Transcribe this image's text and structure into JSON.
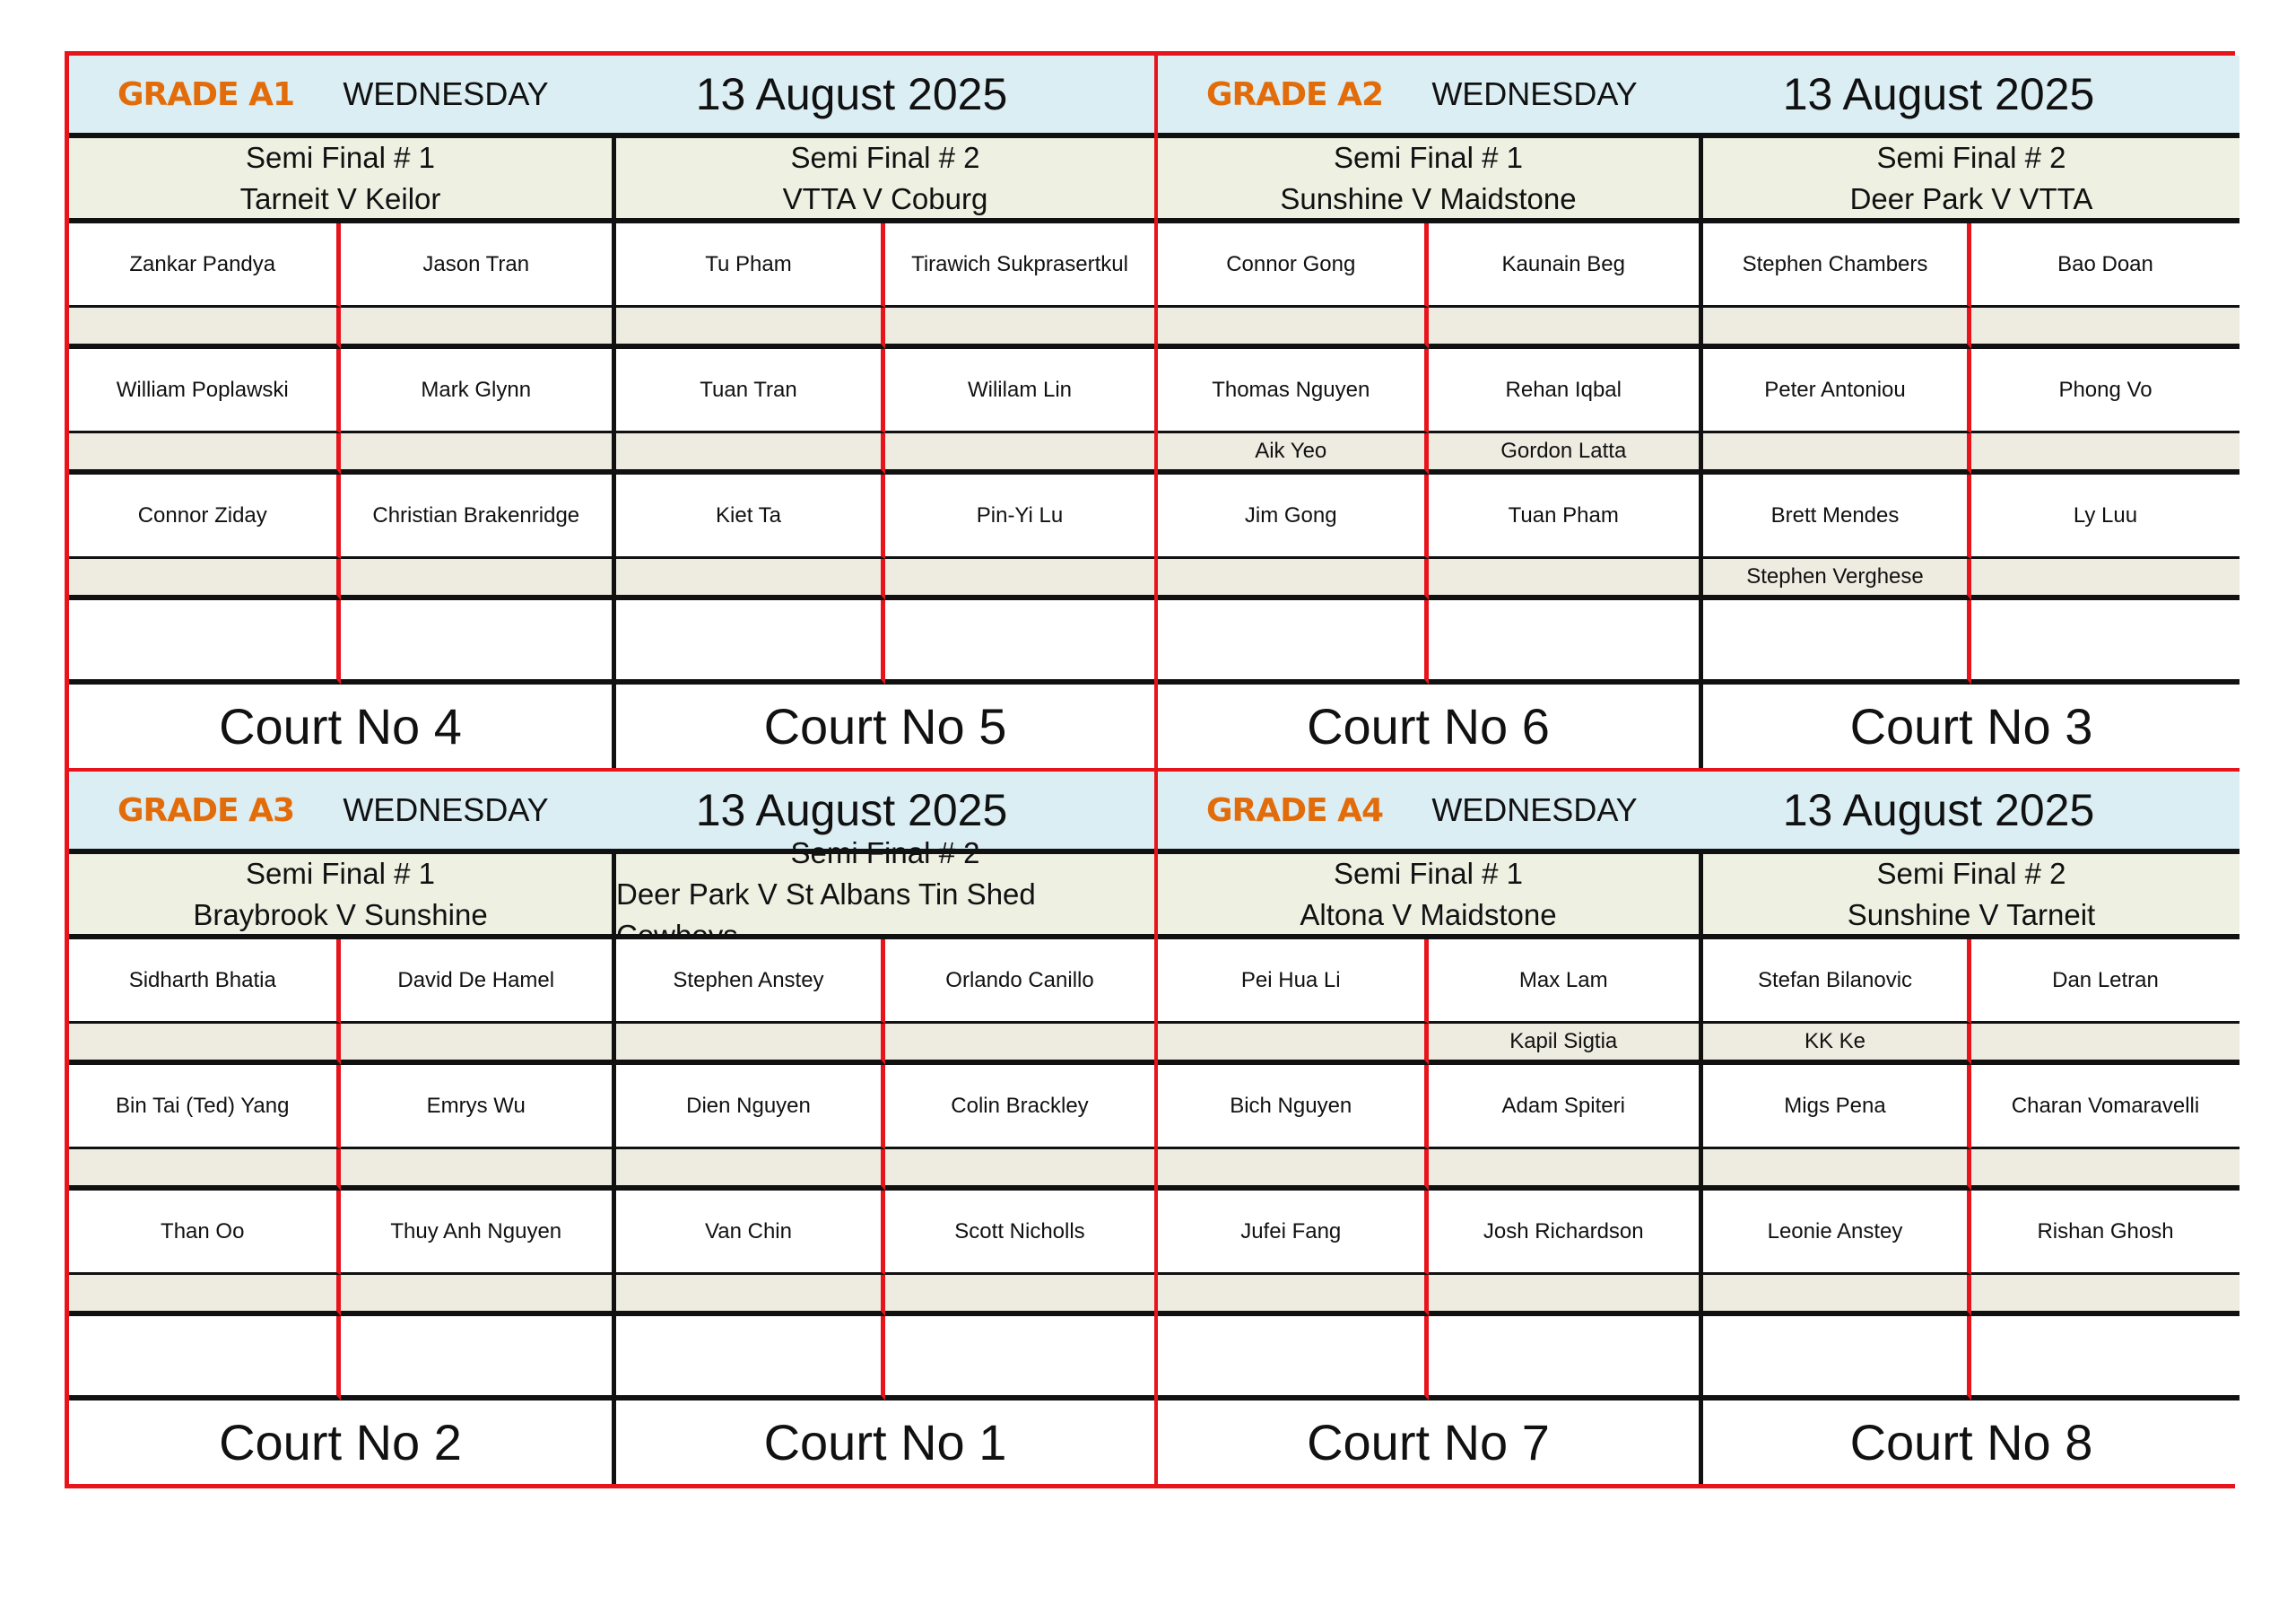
{
  "grades": [
    {
      "grade": "GRADE A1",
      "day": "WEDNESDAY",
      "date": "13 August 2025",
      "matches": [
        {
          "title": "Semi Final # 1",
          "teams": "Tarneit V Keilor",
          "court": "Court No 4",
          "rows": [
            {
              "home": "Zankar Pandya",
              "away": "Jason Tran",
              "home_sub": "",
              "away_sub": ""
            },
            {
              "home": "William Poplawski",
              "away": "Mark Glynn",
              "home_sub": "",
              "away_sub": ""
            },
            {
              "home": "Connor Ziday",
              "away": "Christian Brakenridge",
              "home_sub": "",
              "away_sub": ""
            }
          ]
        },
        {
          "title": "Semi Final # 2",
          "teams": "VTTA V Coburg",
          "court": "Court No 5",
          "rows": [
            {
              "home": "Tu Pham",
              "away": "Tirawich Sukprasertkul",
              "home_sub": "",
              "away_sub": ""
            },
            {
              "home": "Tuan Tran",
              "away": "Wililam Lin",
              "home_sub": "",
              "away_sub": ""
            },
            {
              "home": "Kiet Ta",
              "away": "Pin-Yi Lu",
              "home_sub": "",
              "away_sub": ""
            }
          ]
        }
      ]
    },
    {
      "grade": "GRADE A2",
      "day": "WEDNESDAY",
      "date": "13 August 2025",
      "matches": [
        {
          "title": "Semi Final # 1",
          "teams": "Sunshine V Maidstone",
          "court": "Court No 6",
          "rows": [
            {
              "home": "Connor Gong",
              "away": "Kaunain Beg",
              "home_sub": "",
              "away_sub": ""
            },
            {
              "home": "Thomas Nguyen",
              "away": "Rehan Iqbal",
              "home_sub": "Aik Yeo",
              "away_sub": "Gordon Latta"
            },
            {
              "home": "Jim Gong",
              "away": "Tuan Pham",
              "home_sub": "",
              "away_sub": ""
            }
          ]
        },
        {
          "title": "Semi Final # 2",
          "teams": "Deer Park V VTTA",
          "court": "Court No 3",
          "rows": [
            {
              "home": "Stephen Chambers",
              "away": "Bao Doan",
              "home_sub": "",
              "away_sub": ""
            },
            {
              "home": "Peter Antoniou",
              "away": "Phong Vo",
              "home_sub": "",
              "away_sub": ""
            },
            {
              "home": "Brett Mendes",
              "away": "Ly Luu",
              "home_sub": "Stephen Verghese",
              "away_sub": ""
            }
          ]
        }
      ]
    },
    {
      "grade": "GRADE A3",
      "day": "WEDNESDAY",
      "date": "13 August 2025",
      "matches": [
        {
          "title": "Semi Final # 1",
          "teams": "Braybrook V Sunshine",
          "court": "Court No 2",
          "rows": [
            {
              "home": "Sidharth Bhatia",
              "away": "David De Hamel",
              "home_sub": "",
              "away_sub": ""
            },
            {
              "home": "Bin Tai (Ted) Yang",
              "away": "Emrys Wu",
              "home_sub": "",
              "away_sub": ""
            },
            {
              "home": "Than Oo",
              "away": "Thuy Anh Nguyen",
              "home_sub": "",
              "away_sub": ""
            }
          ]
        },
        {
          "title": "Semi Final # 2",
          "teams": "Deer Park V St Albans Tin Shed Cowboys",
          "court": "Court No 1",
          "rows": [
            {
              "home": "Stephen Anstey",
              "away": "Orlando Canillo",
              "home_sub": "",
              "away_sub": ""
            },
            {
              "home": "Dien Nguyen",
              "away": "Colin Brackley",
              "home_sub": "",
              "away_sub": ""
            },
            {
              "home": "Van Chin",
              "away": "Scott Nicholls",
              "home_sub": "",
              "away_sub": ""
            }
          ]
        }
      ]
    },
    {
      "grade": "GRADE A4",
      "day": "WEDNESDAY",
      "date": "13 August 2025",
      "matches": [
        {
          "title": "Semi Final # 1",
          "teams": "Altona V Maidstone",
          "court": "Court No 7",
          "rows": [
            {
              "home": "Pei Hua Li",
              "away": "Max Lam",
              "home_sub": "",
              "away_sub": "Kapil Sigtia"
            },
            {
              "home": "Bich Nguyen",
              "away": "Adam Spiteri",
              "home_sub": "",
              "away_sub": ""
            },
            {
              "home": "Jufei Fang",
              "away": "Josh Richardson",
              "home_sub": "",
              "away_sub": ""
            }
          ]
        },
        {
          "title": "Semi Final # 2",
          "teams": "Sunshine V Tarneit",
          "court": "Court No 8",
          "rows": [
            {
              "home": "Stefan Bilanovic",
              "away": "Dan Letran",
              "home_sub": "KK Ke",
              "away_sub": ""
            },
            {
              "home": "Migs Pena",
              "away": "Charan Vomaravelli",
              "home_sub": "",
              "away_sub": ""
            },
            {
              "home": "Leonie Anstey",
              "away": "Rishan Ghosh",
              "home_sub": "",
              "away_sub": ""
            }
          ]
        }
      ]
    }
  ],
  "colors": {
    "border": "#e8141b",
    "grade_text": "#e36c0a",
    "header_bg": "#dbeef4",
    "match_bg": "#eef0e2",
    "sub_bg": "#eeebe1"
  }
}
